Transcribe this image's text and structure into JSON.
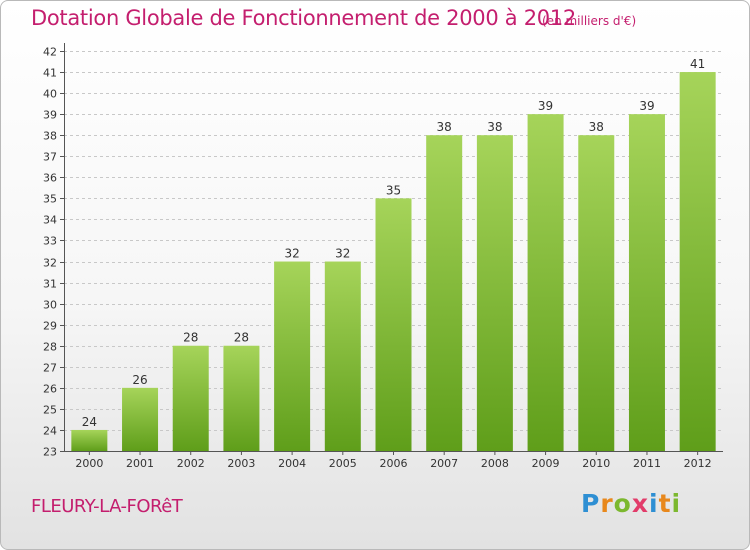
{
  "title": "Dotation Globale de Fonctionnement de 2000 à 2012",
  "subtitle": "(en milliers d'€)",
  "commune": "FLEURY-LA-FORêT",
  "logo": {
    "letters": [
      {
        "char": "P",
        "color": "#2e8fd3"
      },
      {
        "char": "r",
        "color": "#e8881c"
      },
      {
        "char": "o",
        "color": "#7cb82f"
      },
      {
        "char": "x",
        "color": "#e23c6a"
      },
      {
        "char": "i",
        "color": "#2e8fd3"
      },
      {
        "char": "t",
        "color": "#e8881c"
      },
      {
        "char": "i",
        "color": "#7cb82f"
      }
    ]
  },
  "colors": {
    "bar_top": "#a6d45a",
    "bar_bottom": "#5f9e1a",
    "accent": "#c41e6e",
    "grid": "#c8c8c8"
  },
  "chart_data": {
    "type": "bar",
    "title": "Dotation Globale de Fonctionnement de 2000 à 2012",
    "unit": "(en milliers d'€)",
    "categories": [
      "2000",
      "2001",
      "2002",
      "2003",
      "2004",
      "2005",
      "2006",
      "2007",
      "2008",
      "2009",
      "2010",
      "2011",
      "2012"
    ],
    "values": [
      24,
      26,
      28,
      28,
      32,
      32,
      35,
      38,
      38,
      39,
      38,
      39,
      41
    ],
    "ylim": [
      23,
      42
    ],
    "yticks": [
      23,
      24,
      25,
      26,
      27,
      28,
      29,
      30,
      31,
      32,
      33,
      34,
      35,
      36,
      37,
      38,
      39,
      40,
      41,
      42
    ],
    "grid": true,
    "xlabel": "",
    "ylabel": ""
  }
}
